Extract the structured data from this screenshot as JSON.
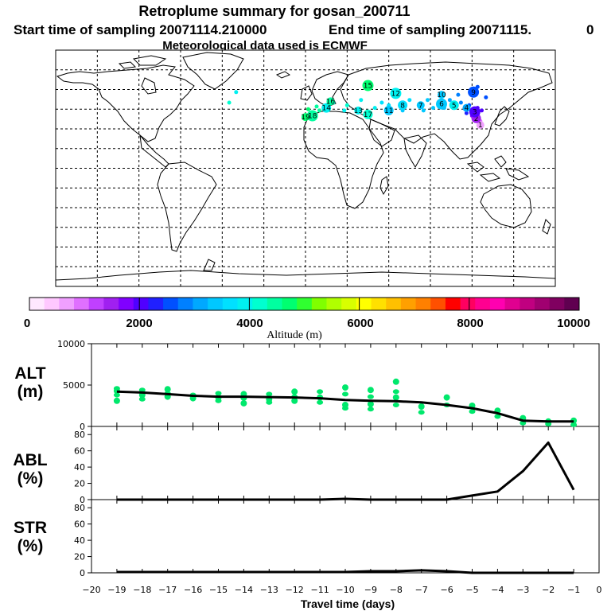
{
  "title": "Retroplume summary for gosan_200711",
  "start_label": "Start time of sampling 20071114.210000",
  "end_label": "End time of sampling 20071115.",
  "end_suffix": "0",
  "met_label": "Meteorological data used is ECMWF",
  "colorbar": {
    "labels": [
      "0",
      "2000",
      "4000",
      "6000",
      "8000",
      "10000"
    ],
    "axis_label": "Altitude (m)",
    "colors": [
      "#ffe8ff",
      "#ffc8ff",
      "#f0a0ff",
      "#e070ff",
      "#c040ff",
      "#a020f0",
      "#8000ff",
      "#5000ff",
      "#2020ff",
      "#0050ff",
      "#0080ff",
      "#00a8ff",
      "#00c8ff",
      "#00e0ff",
      "#00f0f0",
      "#00ffd0",
      "#00ffa0",
      "#00ff70",
      "#30ff30",
      "#80ff00",
      "#b0ff00",
      "#d8ff00",
      "#ffff00",
      "#ffe000",
      "#ffc000",
      "#ffa000",
      "#ff8000",
      "#ff5000",
      "#ff0000",
      "#ff0060",
      "#ff0090",
      "#ff00b0",
      "#e00090",
      "#c00080",
      "#a00070",
      "#800060",
      "#600050"
    ]
  },
  "map": {
    "markers": [
      {
        "label": "1",
        "lon": 126,
        "lat": 33,
        "alt": 800
      },
      {
        "label": "2",
        "lon": 123,
        "lat": 38,
        "alt": 1500
      },
      {
        "label": "3",
        "lon": 122,
        "lat": 43,
        "alt": 2000
      },
      {
        "label": "4",
        "lon": 116,
        "lat": 46,
        "alt": 3200
      },
      {
        "label": "5",
        "lon": 107,
        "lat": 48,
        "alt": 3800
      },
      {
        "label": "6",
        "lon": 98,
        "lat": 49,
        "alt": 3300
      },
      {
        "label": "7",
        "lon": 83,
        "lat": 48,
        "alt": 3500
      },
      {
        "label": "8",
        "lon": 70,
        "lat": 48,
        "alt": 3700
      },
      {
        "label": "9",
        "lon": 121,
        "lat": 58,
        "alt": 2600
      },
      {
        "label": "10",
        "lon": 98,
        "lat": 56,
        "alt": 3300
      },
      {
        "label": "11",
        "lon": 60,
        "lat": 44,
        "alt": 3500
      },
      {
        "label": "12",
        "lon": 65,
        "lat": 57,
        "alt": 3800
      },
      {
        "label": "13",
        "lon": 38,
        "lat": 44,
        "alt": 3900
      },
      {
        "label": "14",
        "lon": 15,
        "lat": 46,
        "alt": 4000
      },
      {
        "label": "15",
        "lon": 45,
        "lat": 63,
        "alt": 4600
      },
      {
        "label": "16",
        "lon": 18,
        "lat": 51,
        "alt": 4500
      },
      {
        "label": "17",
        "lon": 45,
        "lat": 41,
        "alt": 4200
      },
      {
        "label": "18",
        "lon": 5,
        "lat": 40,
        "alt": 4500
      },
      {
        "label": "19",
        "lon": 0,
        "lat": 39,
        "alt": 4700
      }
    ]
  },
  "panels": [
    {
      "name": "ALT",
      "unit": "(m)"
    },
    {
      "name": "ABL",
      "unit": "(%)"
    },
    {
      "name": "STR",
      "unit": "(%)"
    }
  ],
  "x_label": "Travel time (days)",
  "chart_data": [
    {
      "type": "line",
      "title": "ALT",
      "ylabel": "ALT (m)",
      "xlabel": "Travel time (days)",
      "xlim": [
        -20,
        0
      ],
      "ylim": [
        0,
        10000
      ],
      "yticks": [
        0,
        5000,
        10000
      ],
      "x_ticks": [
        -20,
        -19,
        -18,
        -17,
        -16,
        -15,
        -14,
        -13,
        -12,
        -11,
        -10,
        -9,
        -8,
        -7,
        -6,
        -5,
        -4,
        -3,
        -2,
        -1,
        0
      ],
      "x": [
        -19,
        -18,
        -17,
        -16,
        -15,
        -14,
        -13,
        -12,
        -11,
        -10,
        -9,
        -8,
        -7,
        -6,
        -5,
        -4,
        -3,
        -2,
        -1
      ],
      "y": [
        4200,
        4100,
        3900,
        3700,
        3600,
        3600,
        3550,
        3500,
        3400,
        3200,
        3100,
        3050,
        2900,
        2600,
        2200,
        1600,
        700,
        600,
        600
      ],
      "scatter": [
        {
          "x": -19,
          "y": 4600
        },
        {
          "x": -19,
          "y": 4300
        },
        {
          "x": -19,
          "y": 3800
        },
        {
          "x": -19,
          "y": 3100
        },
        {
          "x": -18,
          "y": 4400
        },
        {
          "x": -18,
          "y": 3800
        },
        {
          "x": -18,
          "y": 3300
        },
        {
          "x": -17,
          "y": 4500
        },
        {
          "x": -17,
          "y": 4000
        },
        {
          "x": -17,
          "y": 3600
        },
        {
          "x": -16,
          "y": 3800
        },
        {
          "x": -16,
          "y": 3400
        },
        {
          "x": -15,
          "y": 4000
        },
        {
          "x": -15,
          "y": 3500
        },
        {
          "x": -15,
          "y": 3100
        },
        {
          "x": -14,
          "y": 3900
        },
        {
          "x": -14,
          "y": 3400
        },
        {
          "x": -14,
          "y": 2800
        },
        {
          "x": -13,
          "y": 3900
        },
        {
          "x": -13,
          "y": 3300
        },
        {
          "x": -13,
          "y": 2900
        },
        {
          "x": -12,
          "y": 4200
        },
        {
          "x": -12,
          "y": 3600
        },
        {
          "x": -12,
          "y": 3100
        },
        {
          "x": -11,
          "y": 4200
        },
        {
          "x": -11,
          "y": 3500
        },
        {
          "x": -11,
          "y": 2900
        },
        {
          "x": -10,
          "y": 4700
        },
        {
          "x": -10,
          "y": 3900
        },
        {
          "x": -10,
          "y": 2600
        },
        {
          "x": -10,
          "y": 2200
        },
        {
          "x": -9,
          "y": 4400
        },
        {
          "x": -9,
          "y": 3600
        },
        {
          "x": -9,
          "y": 2700
        },
        {
          "x": -9,
          "y": 2100
        },
        {
          "x": -8,
          "y": 5400
        },
        {
          "x": -8,
          "y": 4200
        },
        {
          "x": -8,
          "y": 3500
        },
        {
          "x": -8,
          "y": 2600
        },
        {
          "x": -7,
          "y": 2400
        },
        {
          "x": -7,
          "y": 1700
        },
        {
          "x": -6,
          "y": 3500
        },
        {
          "x": -6,
          "y": 2600
        },
        {
          "x": -5,
          "y": 2500
        },
        {
          "x": -5,
          "y": 1800
        },
        {
          "x": -4,
          "y": 1900
        },
        {
          "x": -4,
          "y": 1200
        },
        {
          "x": -3,
          "y": 1000
        },
        {
          "x": -3,
          "y": 400
        },
        {
          "x": -2,
          "y": 600
        },
        {
          "x": -2,
          "y": 300
        },
        {
          "x": -1,
          "y": 700
        },
        {
          "x": -1,
          "y": 200
        }
      ]
    },
    {
      "type": "line",
      "title": "ABL",
      "ylabel": "ABL (%)",
      "xlim": [
        -20,
        0
      ],
      "ylim": [
        0,
        90
      ],
      "yticks": [
        0,
        20,
        40,
        60,
        80
      ],
      "x": [
        -19,
        -18,
        -17,
        -16,
        -15,
        -14,
        -13,
        -12,
        -11,
        -10,
        -9,
        -8,
        -7,
        -6,
        -5,
        -4,
        -3,
        -2,
        -1
      ],
      "y": [
        0,
        0,
        0,
        0,
        0,
        0,
        0,
        0,
        0,
        1,
        0,
        0,
        0,
        0,
        5,
        10,
        35,
        70,
        12
      ]
    },
    {
      "type": "line",
      "title": "STR",
      "ylabel": "STR (%)",
      "xlim": [
        -20,
        0
      ],
      "ylim": [
        0,
        90
      ],
      "yticks": [
        0,
        20,
        40,
        60,
        80
      ],
      "x": [
        -19,
        -18,
        -17,
        -16,
        -15,
        -14,
        -13,
        -12,
        -11,
        -10,
        -9,
        -8,
        -7,
        -6,
        -5,
        -4,
        -3,
        -2,
        -1
      ],
      "y": [
        1,
        1,
        1,
        1,
        1,
        1,
        1,
        1,
        1,
        1,
        2,
        2,
        3,
        2,
        0,
        0,
        0,
        0,
        0
      ]
    }
  ]
}
